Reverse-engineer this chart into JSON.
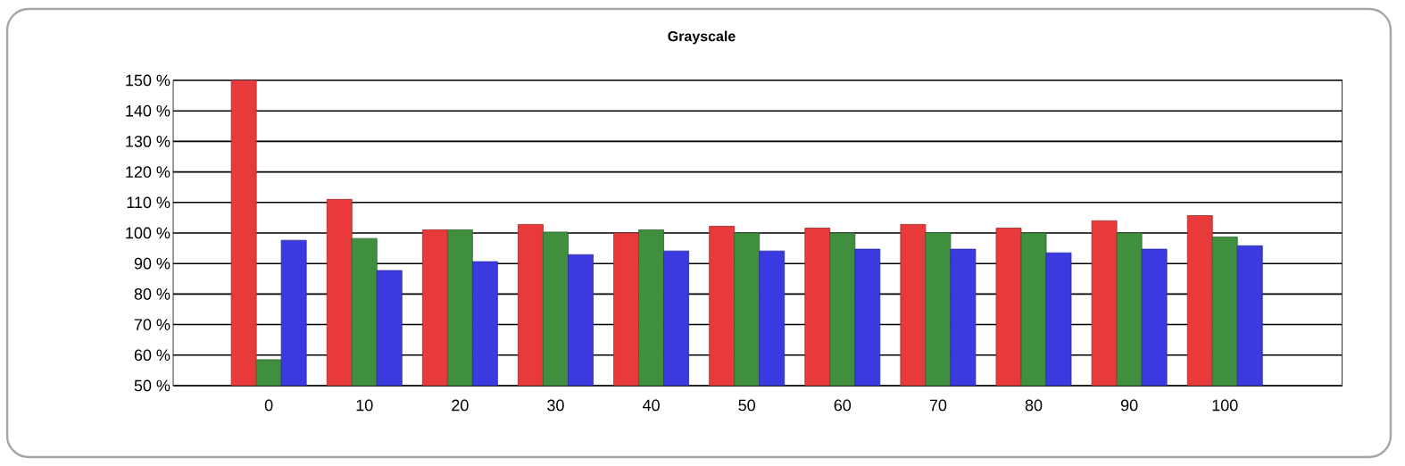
{
  "chart_data": {
    "type": "bar",
    "title": "Grayscale",
    "categories": [
      "0",
      "10",
      "20",
      "30",
      "40",
      "50",
      "60",
      "70",
      "80",
      "90",
      "100"
    ],
    "series": [
      {
        "color": "#e83a3a",
        "values": [
          150,
          111,
          101,
          102.8,
          100,
          102.2,
          101.6,
          102.8,
          101.6,
          104,
          105.7
        ]
      },
      {
        "color": "#3f8f3f",
        "values": [
          58.5,
          98.2,
          101,
          100.3,
          101,
          100,
          100,
          100.1,
          100,
          100,
          98.7
        ]
      },
      {
        "color": "#3a3ae0",
        "values": [
          97.6,
          87.7,
          90.6,
          92.9,
          94.1,
          94.1,
          94.7,
          94.7,
          93.5,
          94.7,
          95.8
        ]
      }
    ],
    "ylim": [
      50,
      150
    ],
    "yticks": [
      {
        "value": 50,
        "label": "50 %"
      },
      {
        "value": 60,
        "label": "60 %"
      },
      {
        "value": 70,
        "label": "70 %"
      },
      {
        "value": 80,
        "label": "80 %"
      },
      {
        "value": 90,
        "label": "90 %"
      },
      {
        "value": 100,
        "label": "100 %"
      },
      {
        "value": 110,
        "label": "110 %"
      },
      {
        "value": 120,
        "label": "120 %"
      },
      {
        "value": 130,
        "label": "130 %"
      },
      {
        "value": 140,
        "label": "140 %"
      },
      {
        "value": 150,
        "label": "150 %"
      }
    ],
    "grid": "y"
  }
}
